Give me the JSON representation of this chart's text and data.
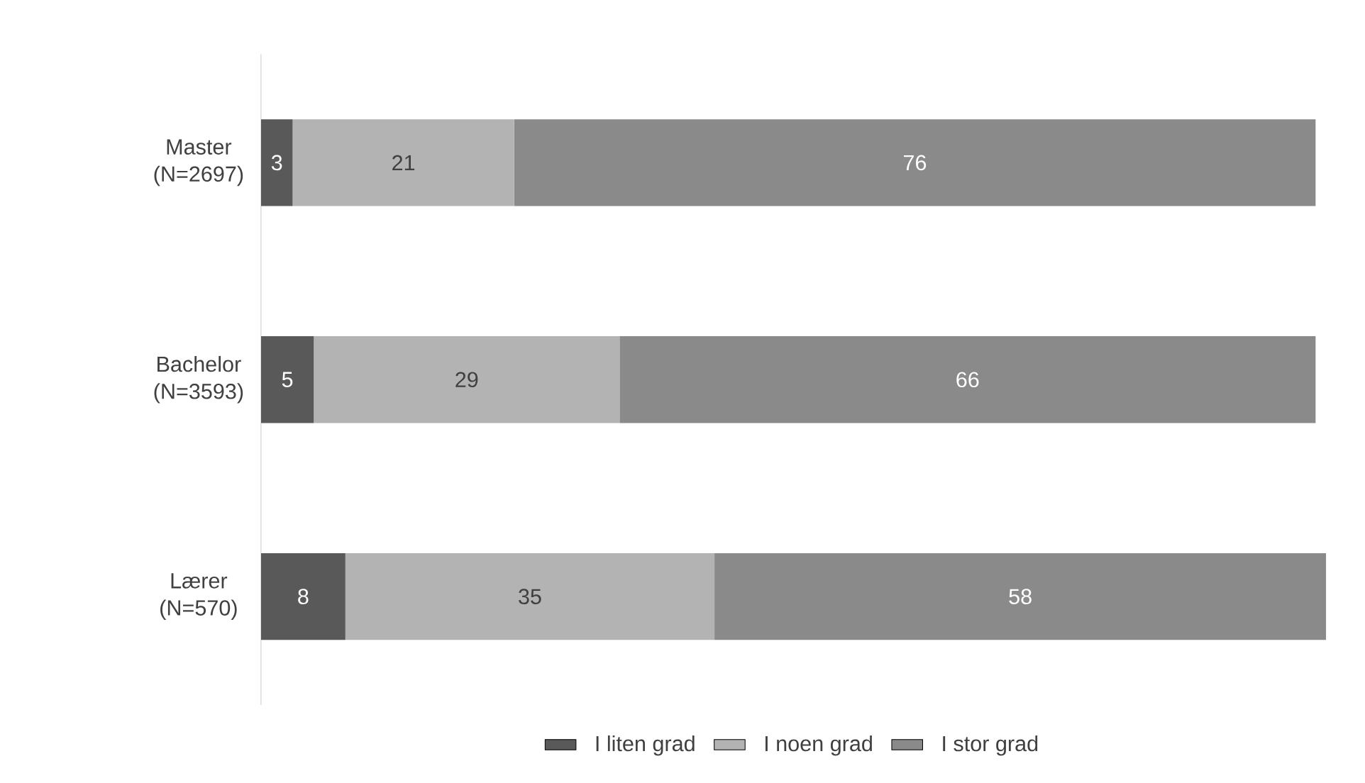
{
  "chart_data": {
    "type": "bar",
    "orientation": "horizontal",
    "stacked": true,
    "data_labels": true,
    "tick_labels": "y",
    "grid": false,
    "legend": "bottom",
    "categories": [
      "Master (N=2697)",
      "Bachelor (N=3593)",
      "Lærer (N=570)"
    ],
    "series": [
      {
        "name": "I liten grad",
        "color": "#595959",
        "values": [
          3,
          5,
          8
        ]
      },
      {
        "name": "I noen grad",
        "color": "#b3b3b3",
        "values": [
          21,
          29,
          35
        ]
      },
      {
        "name": "I stor grad",
        "color": "#8a8a8a",
        "values": [
          76,
          66,
          58
        ]
      }
    ]
  }
}
